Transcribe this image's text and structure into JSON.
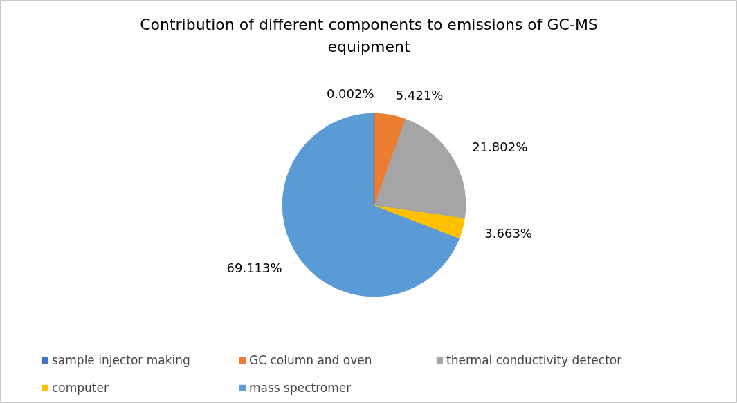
{
  "chart_data": {
    "type": "pie",
    "title": "Contribution of different components to emissions of GC-MS equipment",
    "categories": [
      "sample injector making",
      "GC column and oven",
      "thermal conductivity detector",
      "computer",
      "mass spectromer"
    ],
    "values": [
      0.002,
      5.421,
      21.802,
      3.663,
      69.113
    ],
    "colors": [
      "#4472c4",
      "#ed7d31",
      "#a5a5a5",
      "#ffc000",
      "#5b9bd5"
    ],
    "value_labels": [
      "0.002%",
      "5.421%",
      "21.802%",
      "3.663%",
      "69.113%"
    ],
    "legend": "bottom"
  }
}
